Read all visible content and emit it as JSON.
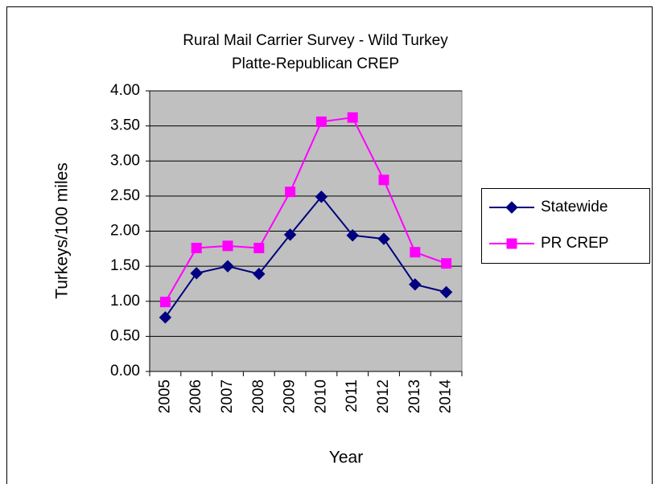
{
  "chart_data": {
    "type": "line",
    "title": "Rural Mail Carrier Survey - Wild Turkey",
    "subtitle": "Platte-Republican CREP",
    "x_label": "Year",
    "y_label": "Turkeys/100 miles",
    "categories": [
      "2005",
      "2006",
      "2007",
      "2008",
      "2009",
      "2010",
      "2011",
      "2012",
      "2013",
      "2014"
    ],
    "series": [
      {
        "name": "Statewide",
        "color": "#000080",
        "marker": "diamond",
        "values": [
          0.77,
          1.4,
          1.5,
          1.39,
          1.95,
          2.49,
          1.94,
          1.89,
          1.24,
          1.13
        ]
      },
      {
        "name": "PR CREP",
        "color": "#ff00ff",
        "marker": "square",
        "values": [
          0.99,
          1.76,
          1.79,
          1.76,
          2.56,
          3.56,
          3.62,
          2.73,
          1.7,
          1.54
        ]
      }
    ],
    "ylim": [
      0,
      4
    ],
    "yticks": [
      {
        "value": 0,
        "label": "0.00"
      },
      {
        "value": 0.5,
        "label": "0.50"
      },
      {
        "value": 1,
        "label": "1.00"
      },
      {
        "value": 1.5,
        "label": "1.50"
      },
      {
        "value": 2,
        "label": "2.00"
      },
      {
        "value": 2.5,
        "label": "2.50"
      },
      {
        "value": 3,
        "label": "3.00"
      },
      {
        "value": 3.5,
        "label": "3.50"
      },
      {
        "value": 4,
        "label": "4.00"
      }
    ],
    "grid": true,
    "plot_background": "#c0c0c0"
  }
}
